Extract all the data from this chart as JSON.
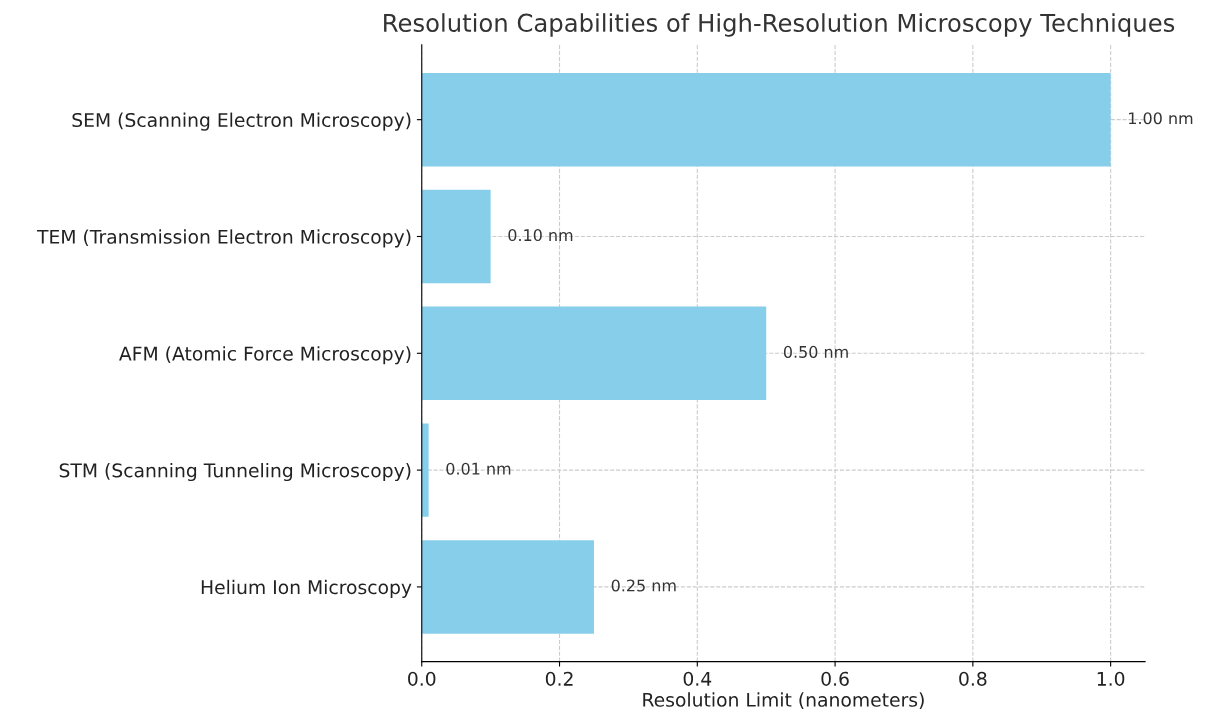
{
  "chart_data": {
    "type": "bar",
    "orientation": "horizontal",
    "title": "Resolution Capabilities of High-Resolution Microscopy Techniques",
    "xlabel": "Resolution Limit (nanometers)",
    "categories": [
      "SEM (Scanning Electron Microscopy)",
      "TEM (Transmission Electron Microscopy)",
      "AFM (Atomic Force Microscopy)",
      "STM (Scanning Tunneling Microscopy)",
      "Helium Ion Microscopy"
    ],
    "values": [
      1.0,
      0.1,
      0.5,
      0.01,
      0.25
    ],
    "value_labels": [
      "1.00 nm",
      "0.10 nm",
      "0.50 nm",
      "0.01 nm",
      "0.25 nm"
    ],
    "color": "#87ceeb",
    "xlim": [
      0,
      1.05
    ],
    "xticks": [
      {
        "value": 0,
        "label": "0.0"
      },
      0.2,
      0.4,
      0.6,
      0.8,
      {
        "value": 1,
        "label": "1.0"
      }
    ],
    "grid": true
  }
}
